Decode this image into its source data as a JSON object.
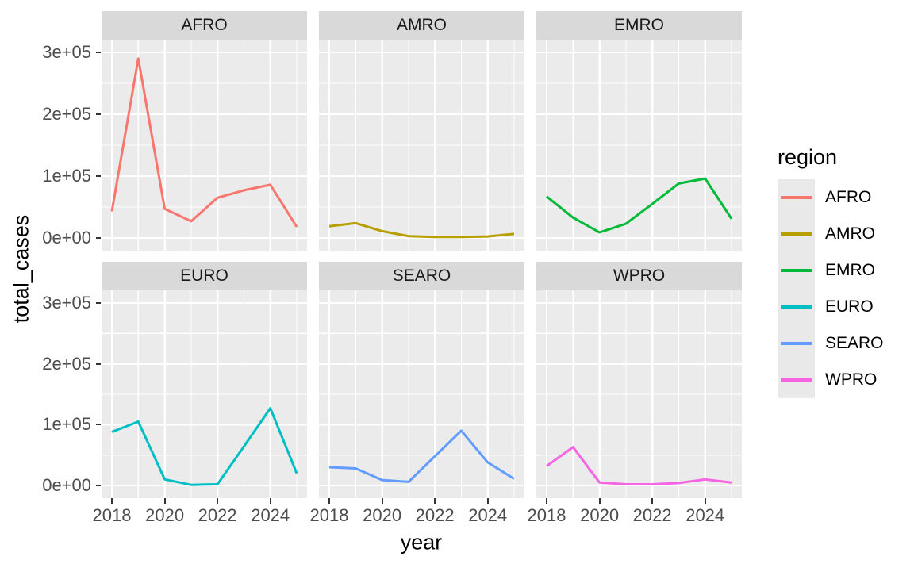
{
  "chart_data": {
    "type": "line",
    "title": "",
    "xlabel": "year",
    "ylabel": "total_cases",
    "legend_title": "region",
    "legend_position": "right",
    "grid": true,
    "facet_variable": "region",
    "facet_titles": [
      "AFRO",
      "AMRO",
      "EMRO",
      "EURO",
      "SEARO",
      "WPRO"
    ],
    "x": [
      2018,
      2019,
      2020,
      2021,
      2022,
      2023,
      2024,
      2025
    ],
    "xlim": [
      2018,
      2025
    ],
    "x_ticks": [
      2018,
      2020,
      2022,
      2024
    ],
    "x_tick_labels": [
      "2018",
      "2020",
      "2022",
      "2024"
    ],
    "x_minor_ticks": [
      2019,
      2021,
      2023,
      2025
    ],
    "ylim": [
      0,
      300000
    ],
    "y_ticks": [
      0,
      100000,
      200000,
      300000
    ],
    "y_tick_labels": [
      "0e+00",
      "1e+05",
      "2e+05",
      "3e+05"
    ],
    "y_minor_ticks": [
      50000,
      150000,
      250000
    ],
    "series": [
      {
        "name": "AFRO",
        "color": "#F8766D",
        "values": [
          43000,
          290000,
          47000,
          27000,
          65000,
          77000,
          86000,
          18000
        ]
      },
      {
        "name": "AMRO",
        "color": "#B79F00",
        "values": [
          19000,
          24000,
          11000,
          3000,
          1500,
          1500,
          2500,
          6500
        ]
      },
      {
        "name": "EMRO",
        "color": "#00BA38",
        "values": [
          67000,
          33000,
          9000,
          23000,
          55000,
          88000,
          96000,
          31000
        ]
      },
      {
        "name": "EURO",
        "color": "#00BFC4",
        "values": [
          88000,
          105000,
          10000,
          1000,
          2000,
          64000,
          127000,
          20000
        ]
      },
      {
        "name": "SEARO",
        "color": "#619CFF",
        "values": [
          30000,
          28000,
          9000,
          6000,
          48000,
          90000,
          38000,
          11000
        ]
      },
      {
        "name": "WPRO",
        "color": "#F564E3",
        "values": [
          32000,
          63000,
          5000,
          2000,
          2000,
          4000,
          10000,
          5000
        ]
      }
    ]
  },
  "style": {
    "panel_bg": "#EBEBEB",
    "strip_bg": "#D9D9D9",
    "grid_color": "#FFFFFF",
    "tick_text_color": "#4D4D4D",
    "strip_text_color": "#1A1A1A",
    "axis_title_color": "#000000",
    "legend_key_bg": "#E9E9E9",
    "tick_mark_color": "#333333"
  }
}
